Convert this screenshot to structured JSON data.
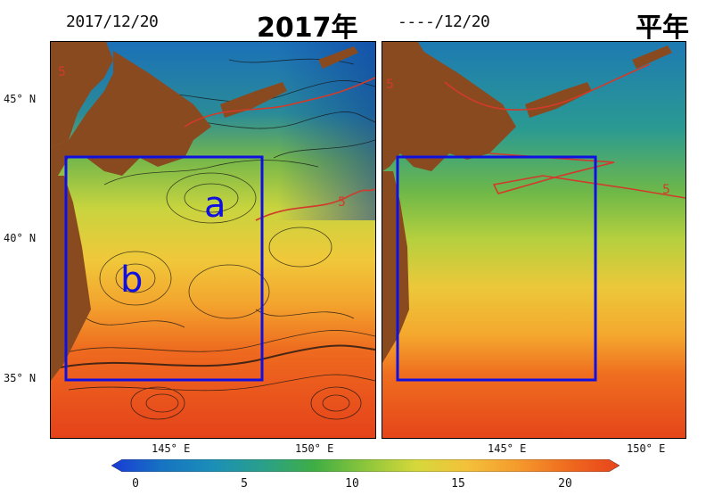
{
  "left_panel": {
    "date": "2017/12/20",
    "title": "2017年",
    "box_label_a": "a",
    "box_label_b": "b"
  },
  "right_panel": {
    "date": "----/12/20",
    "title": "平年"
  },
  "contour_label": "5",
  "latitude_labels": [
    "45° N",
    "40° N",
    "35° N"
  ],
  "longitude_labels": [
    "145° E",
    "150° E"
  ],
  "colorbar": {
    "ticks": [
      "0",
      "5",
      "10",
      "15",
      "20"
    ],
    "stops": [
      "#1a3ad6",
      "#1674c2",
      "#1b8fb8",
      "#2aa089",
      "#3fae44",
      "#8cc63b",
      "#d6d83a",
      "#f3c13a",
      "#f59a2c",
      "#ef6a1f",
      "#e8431a"
    ]
  },
  "colors": {
    "land": "#8a4a20",
    "box": "#1010e0",
    "contour": "#d23a2a"
  }
}
